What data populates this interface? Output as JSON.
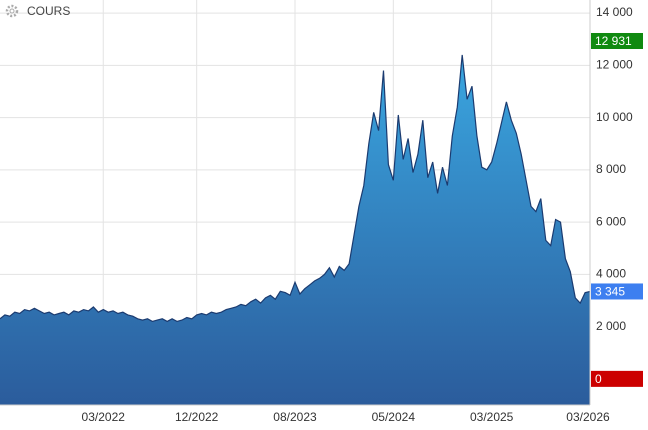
{
  "chart_data": {
    "type": "area",
    "title": "COURS",
    "categories": [
      null,
      null,
      null,
      null,
      null,
      null,
      null,
      null,
      null,
      null,
      null,
      null,
      null,
      null,
      null,
      null,
      null,
      null,
      null,
      null,
      null,
      "03/2022",
      null,
      null,
      null,
      null,
      null,
      null,
      null,
      null,
      null,
      null,
      null,
      null,
      null,
      null,
      null,
      null,
      null,
      null,
      "12/2022",
      null,
      null,
      null,
      null,
      null,
      null,
      null,
      null,
      null,
      null,
      null,
      null,
      null,
      null,
      null,
      null,
      null,
      null,
      null,
      "08/2023",
      null,
      null,
      null,
      null,
      null,
      null,
      null,
      null,
      null,
      null,
      null,
      null,
      null,
      null,
      null,
      null,
      null,
      null,
      null,
      "05/2024",
      null,
      null,
      null,
      null,
      null,
      null,
      null,
      null,
      null,
      null,
      null,
      null,
      null,
      null,
      null,
      null,
      null,
      null,
      null,
      "03/2025",
      null,
      null,
      null,
      null,
      null,
      null,
      null,
      null,
      null,
      null,
      null,
      null,
      null,
      null,
      null,
      null,
      null,
      null,
      null,
      "03/2026"
    ],
    "series": [
      {
        "color": "#2f78bd",
        "values": [
          2300,
          2450,
          2400,
          2550,
          2500,
          2650,
          2600,
          2700,
          2600,
          2500,
          2550,
          2450,
          2500,
          2550,
          2450,
          2600,
          2550,
          2650,
          2600,
          2750,
          2550,
          2650,
          2550,
          2600,
          2500,
          2550,
          2450,
          2400,
          2300,
          2250,
          2300,
          2200,
          2250,
          2300,
          2200,
          2300,
          2200,
          2250,
          2350,
          2300,
          2450,
          2500,
          2450,
          2550,
          2500,
          2550,
          2650,
          2700,
          2750,
          2850,
          2800,
          2950,
          3050,
          2900,
          3100,
          3200,
          3050,
          3350,
          3300,
          3200,
          3700,
          3250,
          3450,
          3600,
          3750,
          3850,
          4000,
          4250,
          3900,
          4300,
          4150,
          4400,
          5500,
          6600,
          7400,
          9000,
          10200,
          9500,
          11800,
          8200,
          7600,
          10100,
          8400,
          9200,
          7900,
          8600,
          9900,
          7700,
          8300,
          7100,
          8100,
          7400,
          9300,
          10400,
          12400,
          10700,
          11200,
          9300,
          8100,
          8000,
          8300,
          9000,
          9800,
          10600,
          9900,
          9400,
          8600,
          7600,
          6600,
          6400,
          6900,
          5300,
          5100,
          6100,
          6000,
          4600,
          4100,
          3100,
          2900,
          3300,
          3345
        ]
      }
    ],
    "ylim": [
      -1000,
      14500
    ],
    "yticks": [
      {
        "value": 2000,
        "label": "2 000"
      },
      {
        "value": 4000,
        "label": "4 000"
      },
      {
        "value": 6000,
        "label": "6 000"
      },
      {
        "value": 8000,
        "label": "8 000"
      },
      {
        "value": 10000,
        "label": "10 000"
      },
      {
        "value": 12000,
        "label": "12 000"
      },
      {
        "value": 14000,
        "label": "14 000"
      }
    ],
    "markers": [
      {
        "value": 12931,
        "label": "12 931",
        "color": "#108a10"
      },
      {
        "value": 3345,
        "label": "3 345",
        "color": "#3d7ff0"
      },
      {
        "value": 0,
        "label": "0",
        "color": "#cc0000"
      }
    ],
    "grid": true
  }
}
